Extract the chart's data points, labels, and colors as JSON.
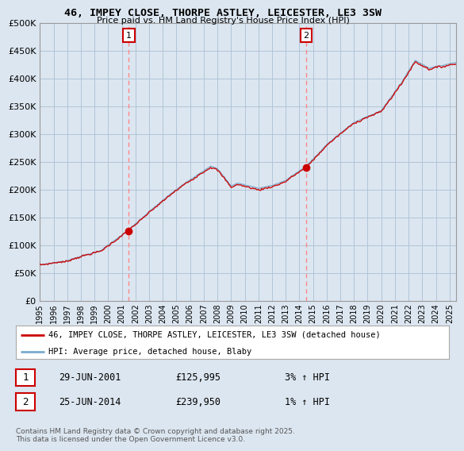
{
  "title": "46, IMPEY CLOSE, THORPE ASTLEY, LEICESTER, LE3 3SW",
  "subtitle": "Price paid vs. HM Land Registry's House Price Index (HPI)",
  "legend_line1": "46, IMPEY CLOSE, THORPE ASTLEY, LEICESTER, LE3 3SW (detached house)",
  "legend_line2": "HPI: Average price, detached house, Blaby",
  "annotation1_label": "1",
  "annotation1_date": "29-JUN-2001",
  "annotation1_price": "£125,995",
  "annotation1_hpi": "3% ↑ HPI",
  "annotation2_label": "2",
  "annotation2_date": "25-JUN-2014",
  "annotation2_price": "£239,950",
  "annotation2_hpi": "1% ↑ HPI",
  "footer": "Contains HM Land Registry data © Crown copyright and database right 2025.\nThis data is licensed under the Open Government Licence v3.0.",
  "ylim": [
    0,
    500000
  ],
  "yticks": [
    0,
    50000,
    100000,
    150000,
    200000,
    250000,
    300000,
    350000,
    400000,
    450000,
    500000
  ],
  "background_color": "#dce6f0",
  "plot_bg_color": "#dce6f0",
  "grid_color": "#b0c4d8",
  "line_color_red": "#cc0000",
  "line_color_blue": "#7aabcc",
  "vline_color": "#ff8888",
  "vline1_x": 2001.5,
  "vline2_x": 2014.5,
  "marker1_x": 2001.5,
  "marker1_y": 125995,
  "marker2_x": 2014.5,
  "marker2_y": 239950,
  "xmin": 1995,
  "xmax": 2025.5
}
